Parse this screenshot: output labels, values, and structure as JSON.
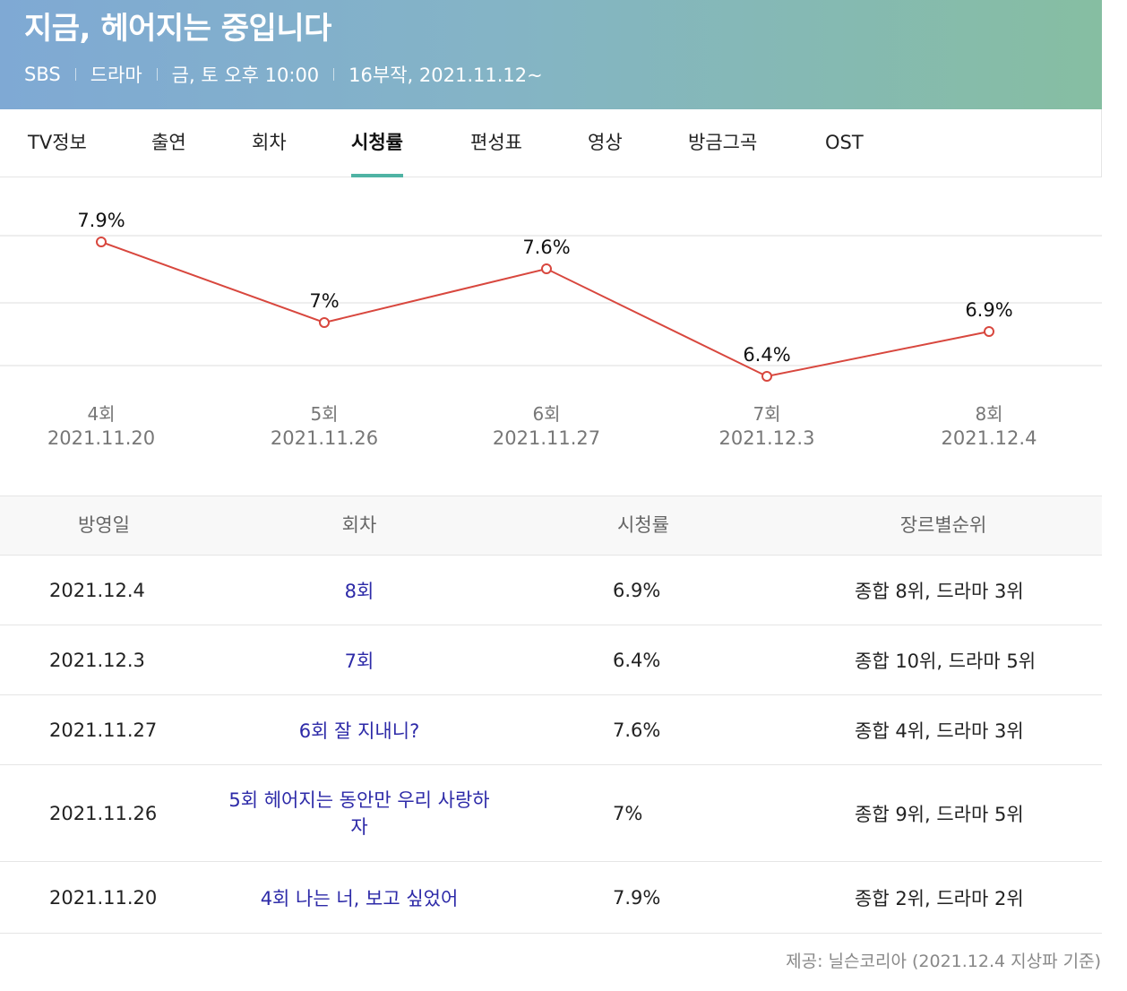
{
  "header": {
    "title": "지금, 헤어지는 중입니다",
    "network": "SBS",
    "genre": "드라마",
    "schedule": "금, 토 오후 10:00",
    "info": "16부작, 2021.11.12~"
  },
  "tabs": [
    "TV정보",
    "출연",
    "회차",
    "시청률",
    "편성표",
    "영상",
    "방금그곡",
    "OST"
  ],
  "active_tab": "시청률",
  "chart_data": {
    "type": "line",
    "categories": [
      "4회",
      "5회",
      "6회",
      "7회",
      "8회"
    ],
    "dates": [
      "2021.11.20",
      "2021.11.26",
      "2021.11.27",
      "2021.12.3",
      "2021.12.4"
    ],
    "values": [
      7.9,
      7.0,
      7.6,
      6.4,
      6.9
    ],
    "data_labels": [
      "7.9%",
      "7%",
      "7.6%",
      "6.4%",
      "6.9%"
    ],
    "grid": true,
    "line_color": "#d8473e"
  },
  "table": {
    "headers": [
      "방영일",
      "회차",
      "시청률",
      "장르별순위"
    ],
    "rows": [
      {
        "date": "2021.12.4",
        "episode": "8회",
        "rating": "6.9%",
        "rank": "종합 8위, 드라마 3위"
      },
      {
        "date": "2021.12.3",
        "episode": "7회",
        "rating": "6.4%",
        "rank": "종합 10위, 드라마 5위"
      },
      {
        "date": "2021.11.27",
        "episode": "6회 잘 지내니?",
        "rating": "7.6%",
        "rank": "종합 4위, 드라마 3위"
      },
      {
        "date": "2021.11.26",
        "episode": "5회 헤어지는 동안만 우리 사랑하자",
        "rating": "7%",
        "rank": "종합 9위, 드라마 5위"
      },
      {
        "date": "2021.11.20",
        "episode": "4회 나는 너, 보고 싶었어",
        "rating": "7.9%",
        "rank": "종합 2위, 드라마 2위"
      }
    ]
  },
  "source": "제공: 닐슨코리아 (2021.12.4 지상파 기준)"
}
